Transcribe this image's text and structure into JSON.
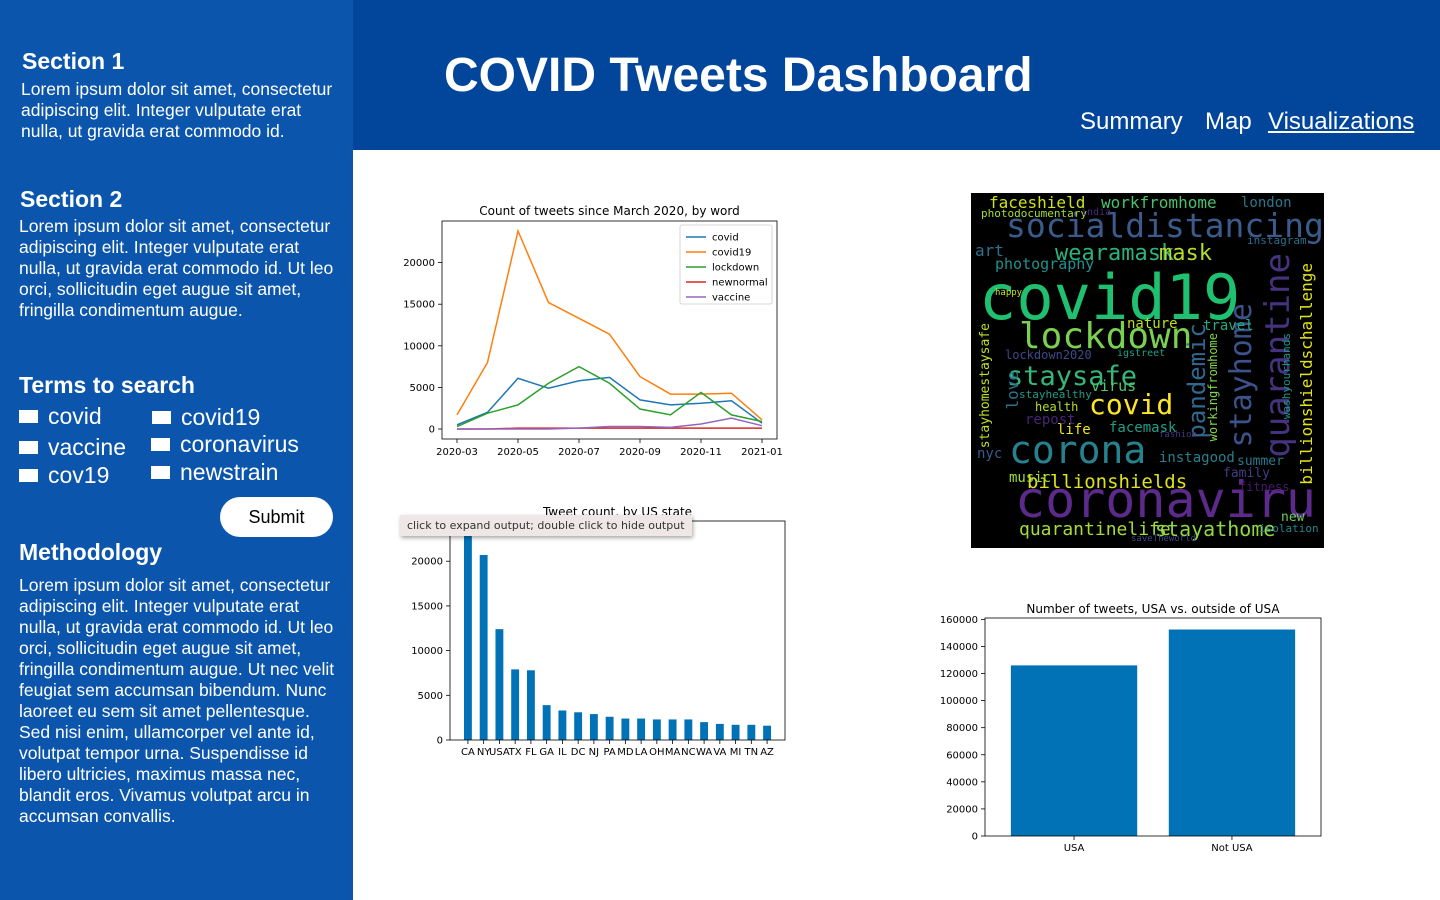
{
  "sidebar": {
    "section1": {
      "title": "Section 1",
      "text": "Lorem ipsum dolor sit amet, consectetur adipiscing elit. Integer vulputate erat nulla, ut gravida erat commodo id."
    },
    "section2": {
      "title": "Section 2",
      "text": "Lorem ipsum dolor sit amet, consectetur adipiscing elit. Integer vulputate erat nulla, ut gravida erat commodo id. Ut leo orci, sollicitudin eget augue sit amet, fringilla condimentum augue."
    },
    "terms": {
      "title": "Terms to search",
      "items": [
        "covid",
        "covid19",
        "vaccine",
        "coronavirus",
        "cov19",
        "newstrain"
      ]
    },
    "submit_label": "Submit",
    "methodology": {
      "title": "Methodology",
      "text": "Lorem ipsum dolor sit amet, consectetur adipiscing elit. Integer vulputate erat nulla, ut gravida erat commodo id. Ut leo orci, sollicitudin eget augue sit amet, fringilla condimentum augue. Ut nec velit feugiat sem accumsan bibendum. Nunc laoreet eu sem sit amet pellentesque. Sed nisi enim, ullamcorper vel ante id, volutpat tempor urna. Suspendisse id libero ultricies, maximus massa nec, blandit eros. Vivamus volutpat arcu in accumsan convallis."
    }
  },
  "header": {
    "title": "COVID Tweets Dashboard",
    "nav": [
      "Summary",
      "Map",
      "Visualizations"
    ],
    "active_nav": "Visualizations"
  },
  "tooltip": "click to expand output; double click to hide output",
  "colors": {
    "sidebar_bg": "#0b56ac",
    "header_bg": "#01469b",
    "bar": "#0072b5",
    "covid": "#1f77b4",
    "covid19": "#ff7f0e",
    "lockdown": "#2ca02c",
    "newnormal": "#d62728",
    "vaccine": "#9467bd"
  },
  "chart_data": [
    {
      "type": "line",
      "title": "Count of tweets since March 2020, by word",
      "x": [
        "2020-03",
        "2020-04",
        "2020-05",
        "2020-06",
        "2020-07",
        "2020-08",
        "2020-09",
        "2020-10",
        "2020-11",
        "2020-12",
        "2021-01"
      ],
      "xticks": [
        "2020-03",
        "2020-05",
        "2020-07",
        "2020-09",
        "2020-11",
        "2021-01"
      ],
      "yticks": [
        0,
        5000,
        10000,
        15000,
        20000
      ],
      "ylim": [
        -1200,
        25000
      ],
      "legend": "top-right",
      "series": [
        {
          "name": "covid",
          "values": [
            500,
            2000,
            6100,
            4900,
            5800,
            6200,
            3500,
            2900,
            3100,
            3400,
            700
          ]
        },
        {
          "name": "covid19",
          "values": [
            1700,
            8000,
            23800,
            15200,
            13300,
            11400,
            6300,
            4200,
            4200,
            4300,
            1100
          ]
        },
        {
          "name": "lockdown",
          "values": [
            300,
            1900,
            2900,
            5500,
            7500,
            5500,
            2400,
            1700,
            4400,
            1700,
            900
          ]
        },
        {
          "name": "newnormal",
          "values": [
            0,
            0,
            100,
            100,
            100,
            100,
            100,
            100,
            100,
            100,
            100
          ]
        },
        {
          "name": "vaccine",
          "values": [
            0,
            0,
            0,
            0,
            100,
            300,
            300,
            200,
            600,
            1300,
            400
          ]
        }
      ]
    },
    {
      "type": "bar",
      "title": "Tweet count, by US state",
      "categories": [
        "CA",
        "NY",
        "USA",
        "TX",
        "FL",
        "GA",
        "IL",
        "DC",
        "NJ",
        "PA",
        "MD",
        "LA",
        "OH",
        "MA",
        "NC",
        "WA",
        "VA",
        "MI",
        "TN",
        "AZ"
      ],
      "values": [
        23400,
        20700,
        12400,
        7900,
        7800,
        3900,
        3300,
        3100,
        2900,
        2600,
        2400,
        2400,
        2300,
        2300,
        2300,
        2000,
        1800,
        1700,
        1700,
        1600
      ],
      "yticks": [
        0,
        5000,
        10000,
        15000,
        20000
      ],
      "ylim": [
        0,
        24500
      ]
    },
    {
      "type": "bar",
      "title": "Number of tweets, USA vs. outside of USA",
      "categories": [
        "USA",
        "Not USA"
      ],
      "values": [
        126000,
        152500
      ],
      "yticks": [
        0,
        20000,
        40000,
        60000,
        80000,
        100000,
        120000,
        140000,
        160000
      ],
      "ylim": [
        0,
        161000
      ]
    }
  ],
  "wordcloud": [
    {
      "t": "covid19",
      "c": "#1fc070"
    },
    {
      "t": "coronaviru",
      "c": "#5b2a8a"
    },
    {
      "t": "socialdistancing",
      "c": "#3a5b8c"
    },
    {
      "t": "lockdown",
      "c": "#7ad151"
    },
    {
      "t": "corona",
      "c": "#26828e"
    },
    {
      "t": "quarantine",
      "c": "#46337e"
    },
    {
      "t": "stayhome",
      "c": "#3b528b"
    },
    {
      "t": "staysafe",
      "c": "#35b779"
    },
    {
      "t": "covid",
      "c": "#fde725"
    },
    {
      "t": "pandemic",
      "c": "#31688e"
    },
    {
      "t": "billionshieldschallenge",
      "c": "#e3e418"
    },
    {
      "t": "wearamask",
      "c": "#2db27d"
    },
    {
      "t": "mask",
      "c": "#b5de2b"
    },
    {
      "t": "faceshield",
      "c": "#d0e11c"
    },
    {
      "t": "workfromhome",
      "c": "#4ac16d"
    },
    {
      "t": "london",
      "c": "#2a788e"
    },
    {
      "t": "photography",
      "c": "#21918c"
    },
    {
      "t": "billionshields",
      "c": "#dde318"
    },
    {
      "t": "quarantinelife",
      "c": "#a5db36"
    },
    {
      "t": "stayathome",
      "c": "#90d743"
    },
    {
      "t": "stayhomestaysafe",
      "c": "#c2df23"
    },
    {
      "t": "nature",
      "c": "#bddf26"
    },
    {
      "t": "travel",
      "c": "#25ab82"
    },
    {
      "t": "love",
      "c": "#2c728e"
    },
    {
      "t": "virus",
      "c": "#52c569"
    },
    {
      "t": "facemask",
      "c": "#1f9e89"
    },
    {
      "t": "workingfromhome",
      "c": "#84d44b"
    },
    {
      "t": "washyourhands",
      "c": "#1f958b"
    },
    {
      "t": "instagood",
      "c": "#277f8e"
    },
    {
      "t": "music",
      "c": "#9dd93b"
    },
    {
      "t": "life",
      "c": "#f1e51d"
    },
    {
      "t": "art",
      "c": "#2d718e"
    },
    {
      "t": "repost",
      "c": "#482475"
    },
    {
      "t": "health",
      "c": "#bade28"
    },
    {
      "t": "nyc",
      "c": "#365c8d"
    },
    {
      "t": "new",
      "c": "#6ece58"
    },
    {
      "t": "summer",
      "c": "#29798e"
    },
    {
      "t": "isolation",
      "c": "#24878e"
    },
    {
      "t": "family",
      "c": "#433e85"
    },
    {
      "t": "lockdown2020",
      "c": "#3e4a89"
    },
    {
      "t": "stayhealthy",
      "c": "#1e9b8a"
    },
    {
      "t": "fitness",
      "c": "#481b6d"
    },
    {
      "t": "photodocumentary",
      "c": "#a8db34"
    },
    {
      "t": "happy",
      "c": "#c8e020"
    },
    {
      "t": "india",
      "c": "#472c7a"
    },
    {
      "t": "saveTheworld",
      "c": "#3f4788"
    },
    {
      "t": "instagram",
      "c": "#2e6f8e"
    },
    {
      "t": "igstreet",
      "c": "#1fa088"
    },
    {
      "t": "fashion",
      "c": "#443983"
    }
  ]
}
